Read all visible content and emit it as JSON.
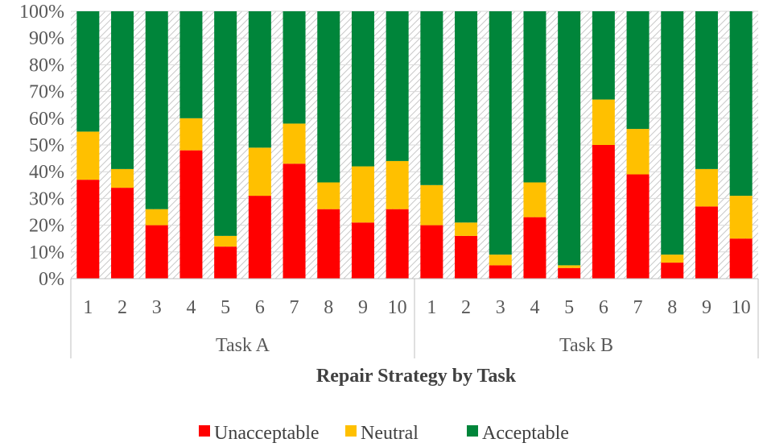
{
  "chart_data": {
    "type": "bar",
    "stacked": true,
    "percent": true,
    "groups": [
      {
        "label": "Task A",
        "categories": [
          "1",
          "2",
          "3",
          "4",
          "5",
          "6",
          "7",
          "8",
          "9",
          "10"
        ]
      },
      {
        "label": "Task B",
        "categories": [
          "1",
          "2",
          "3",
          "4",
          "5",
          "6",
          "7",
          "8",
          "9",
          "10"
        ]
      }
    ],
    "series": [
      {
        "name": "Unacceptable",
        "color": "#ff0000",
        "values": [
          37,
          34,
          20,
          48,
          12,
          31,
          43,
          26,
          21,
          26,
          20,
          16,
          5,
          23,
          4,
          50,
          39,
          6,
          27,
          15
        ]
      },
      {
        "name": "Neutral",
        "color": "#ffc000",
        "values": [
          18,
          7,
          6,
          12,
          4,
          18,
          15,
          10,
          21,
          18,
          15,
          5,
          4,
          13,
          1,
          17,
          17,
          3,
          14,
          16
        ]
      },
      {
        "name": "Acceptable",
        "color": "#00853a",
        "values": [
          45,
          59,
          74,
          40,
          84,
          51,
          42,
          64,
          58,
          56,
          65,
          79,
          91,
          64,
          95,
          33,
          44,
          91,
          59,
          69
        ]
      }
    ],
    "y_ticks": [
      "0%",
      "10%",
      "20%",
      "30%",
      "40%",
      "50%",
      "60%",
      "70%",
      "80%",
      "90%",
      "100%"
    ],
    "ylim": [
      0,
      100
    ],
    "xlabel": "Repair Strategy by Task",
    "ylabel": "",
    "legend_position": "bottom",
    "plot_background": "hatched-gray"
  }
}
